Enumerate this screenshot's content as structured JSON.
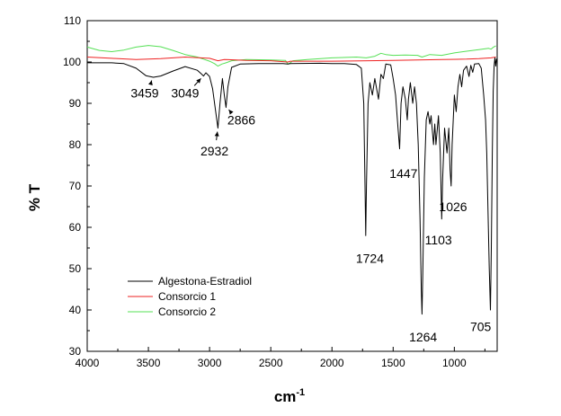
{
  "chart_data": {
    "type": "line",
    "xlabel": "cm",
    "xlabel_sup": "-1",
    "ylabel": "% T",
    "xlim": [
      4000,
      650
    ],
    "ylim": [
      30,
      110
    ],
    "x_ticks": [
      4000,
      3500,
      3000,
      2500,
      2000,
      1500,
      1000
    ],
    "y_ticks": [
      30,
      40,
      50,
      60,
      70,
      80,
      90,
      100,
      110
    ],
    "grid": false,
    "legend_position": "lower-left",
    "series": [
      {
        "name": "Algestona-Estradiol",
        "color": "#000000",
        "points": [
          [
            4000,
            99.8
          ],
          [
            3800,
            99.8
          ],
          [
            3700,
            99.6
          ],
          [
            3600,
            98.5
          ],
          [
            3520,
            96.7
          ],
          [
            3459,
            96.3
          ],
          [
            3400,
            96.6
          ],
          [
            3300,
            97.8
          ],
          [
            3200,
            98.9
          ],
          [
            3100,
            98.0
          ],
          [
            3070,
            97.2
          ],
          [
            3049,
            96.6
          ],
          [
            3030,
            97.4
          ],
          [
            3000,
            96.5
          ],
          [
            2975,
            93.5
          ],
          [
            2950,
            88.0
          ],
          [
            2932,
            84.0
          ],
          [
            2915,
            90.0
          ],
          [
            2895,
            96.0
          ],
          [
            2880,
            92.0
          ],
          [
            2866,
            89.0
          ],
          [
            2850,
            94.0
          ],
          [
            2820,
            98.7
          ],
          [
            2750,
            99.5
          ],
          [
            2600,
            99.6
          ],
          [
            2400,
            99.6
          ],
          [
            2360,
            99.5
          ],
          [
            2340,
            99.6
          ],
          [
            2100,
            99.7
          ],
          [
            2000,
            99.6
          ],
          [
            1900,
            99.6
          ],
          [
            1800,
            99.4
          ],
          [
            1760,
            98.5
          ],
          [
            1740,
            90.0
          ],
          [
            1730,
            70.0
          ],
          [
            1724,
            58.0
          ],
          [
            1718,
            70.0
          ],
          [
            1705,
            90.0
          ],
          [
            1690,
            95.0
          ],
          [
            1670,
            92.0
          ],
          [
            1650,
            96.0
          ],
          [
            1620,
            91.0
          ],
          [
            1600,
            97.0
          ],
          [
            1580,
            96.0
          ],
          [
            1560,
            99.5
          ],
          [
            1520,
            99.3
          ],
          [
            1500,
            96.0
          ],
          [
            1480,
            92.0
          ],
          [
            1460,
            84.0
          ],
          [
            1447,
            79.0
          ],
          [
            1435,
            90.0
          ],
          [
            1420,
            94.0
          ],
          [
            1400,
            91.0
          ],
          [
            1385,
            86.0
          ],
          [
            1375,
            91.0
          ],
          [
            1360,
            95.0
          ],
          [
            1340,
            90.0
          ],
          [
            1325,
            94.0
          ],
          [
            1310,
            90.0
          ],
          [
            1295,
            80.0
          ],
          [
            1280,
            62.0
          ],
          [
            1270,
            45.0
          ],
          [
            1264,
            39.0
          ],
          [
            1258,
            48.0
          ],
          [
            1245,
            72.0
          ],
          [
            1230,
            86.0
          ],
          [
            1215,
            88.0
          ],
          [
            1200,
            85.0
          ],
          [
            1190,
            87.0
          ],
          [
            1170,
            80.0
          ],
          [
            1160,
            85.0
          ],
          [
            1150,
            80.0
          ],
          [
            1130,
            87.0
          ],
          [
            1115,
            78.0
          ],
          [
            1103,
            62.0
          ],
          [
            1095,
            72.0
          ],
          [
            1080,
            84.0
          ],
          [
            1060,
            78.0
          ],
          [
            1045,
            84.0
          ],
          [
            1035,
            74.0
          ],
          [
            1026,
            70.0
          ],
          [
            1018,
            80.0
          ],
          [
            1000,
            92.0
          ],
          [
            985,
            88.0
          ],
          [
            970,
            94.0
          ],
          [
            955,
            97.0
          ],
          [
            940,
            94.0
          ],
          [
            925,
            98.0
          ],
          [
            900,
            99.0
          ],
          [
            880,
            96.5
          ],
          [
            865,
            99.2
          ],
          [
            850,
            97.5
          ],
          [
            835,
            99.5
          ],
          [
            800,
            99.6
          ],
          [
            780,
            98.5
          ],
          [
            760,
            92.0
          ],
          [
            745,
            86.0
          ],
          [
            735,
            78.0
          ],
          [
            725,
            64.0
          ],
          [
            715,
            50.0
          ],
          [
            705,
            40.0
          ],
          [
            698,
            55.0
          ],
          [
            690,
            78.0
          ],
          [
            682,
            93.0
          ],
          [
            675,
            99.0
          ],
          [
            668,
            101.0
          ],
          [
            662,
            99.0
          ],
          [
            655,
            100.8
          ]
        ]
      },
      {
        "name": "Consorcio 1",
        "color": "#ee2222",
        "points": [
          [
            4000,
            101.2
          ],
          [
            3800,
            100.9
          ],
          [
            3600,
            100.6
          ],
          [
            3400,
            100.8
          ],
          [
            3200,
            101.2
          ],
          [
            3000,
            100.9
          ],
          [
            2932,
            100.3
          ],
          [
            2880,
            100.6
          ],
          [
            2700,
            100.4
          ],
          [
            2500,
            100.3
          ],
          [
            2360,
            100.0
          ],
          [
            2340,
            100.2
          ],
          [
            2000,
            100.2
          ],
          [
            1700,
            100.3
          ],
          [
            1500,
            100.4
          ],
          [
            1300,
            100.5
          ],
          [
            1100,
            100.6
          ],
          [
            900,
            100.7
          ],
          [
            800,
            100.8
          ],
          [
            700,
            101.0
          ],
          [
            660,
            101.2
          ]
        ]
      },
      {
        "name": "Consorcio 2",
        "color": "#55e055",
        "points": [
          [
            4000,
            103.6
          ],
          [
            3900,
            102.8
          ],
          [
            3800,
            102.5
          ],
          [
            3700,
            102.9
          ],
          [
            3600,
            103.6
          ],
          [
            3500,
            104.0
          ],
          [
            3400,
            103.7
          ],
          [
            3300,
            102.8
          ],
          [
            3200,
            101.8
          ],
          [
            3100,
            101.2
          ],
          [
            3050,
            100.7
          ],
          [
            3000,
            100.2
          ],
          [
            2960,
            99.6
          ],
          [
            2932,
            99.0
          ],
          [
            2900,
            99.5
          ],
          [
            2866,
            99.8
          ],
          [
            2820,
            100.3
          ],
          [
            2700,
            100.6
          ],
          [
            2500,
            100.5
          ],
          [
            2380,
            100.4
          ],
          [
            2360,
            99.5
          ],
          [
            2340,
            99.8
          ],
          [
            2320,
            100.3
          ],
          [
            2200,
            100.6
          ],
          [
            2000,
            101.0
          ],
          [
            1800,
            101.2
          ],
          [
            1720,
            101.0
          ],
          [
            1650,
            101.4
          ],
          [
            1600,
            102.1
          ],
          [
            1560,
            101.8
          ],
          [
            1500,
            101.6
          ],
          [
            1400,
            101.7
          ],
          [
            1300,
            101.6
          ],
          [
            1264,
            101.2
          ],
          [
            1200,
            101.8
          ],
          [
            1103,
            101.6
          ],
          [
            1000,
            102.2
          ],
          [
            900,
            102.6
          ],
          [
            800,
            103.0
          ],
          [
            720,
            103.3
          ],
          [
            700,
            103.1
          ],
          [
            680,
            103.6
          ],
          [
            660,
            103.9
          ]
        ]
      }
    ],
    "annotations": [
      {
        "text": "3459",
        "x": 3459,
        "y": 96.3,
        "label_x": 3530,
        "label_y": 92.5
      },
      {
        "text": "3049",
        "x": 3049,
        "y": 96.6,
        "label_x": 3200,
        "label_y": 92.5
      },
      {
        "text": "2932",
        "x": 2932,
        "y": 84.0,
        "label_x": 2960,
        "label_y": 78.5
      },
      {
        "text": "2866",
        "x": 2866,
        "y": 89.0,
        "label_x": 2740,
        "label_y": 86.0
      },
      {
        "text": "1724",
        "x": 1724,
        "y": 58.0,
        "label_x": 1690,
        "label_y": 52.5
      },
      {
        "text": "1447",
        "x": 1447,
        "y": 79.0,
        "label_x": 1415,
        "label_y": 73.0
      },
      {
        "text": "1264",
        "x": 1264,
        "y": 39.0,
        "label_x": 1255,
        "label_y": 33.5
      },
      {
        "text": "1103",
        "x": 1103,
        "y": 62.0,
        "label_x": 1130,
        "label_y": 57.0
      },
      {
        "text": "1026",
        "x": 1026,
        "y": 70.0,
        "label_x": 1010,
        "label_y": 65.0
      },
      {
        "text": "705",
        "x": 705,
        "y": 40.0,
        "label_x": 785,
        "label_y": 36.0
      }
    ]
  }
}
